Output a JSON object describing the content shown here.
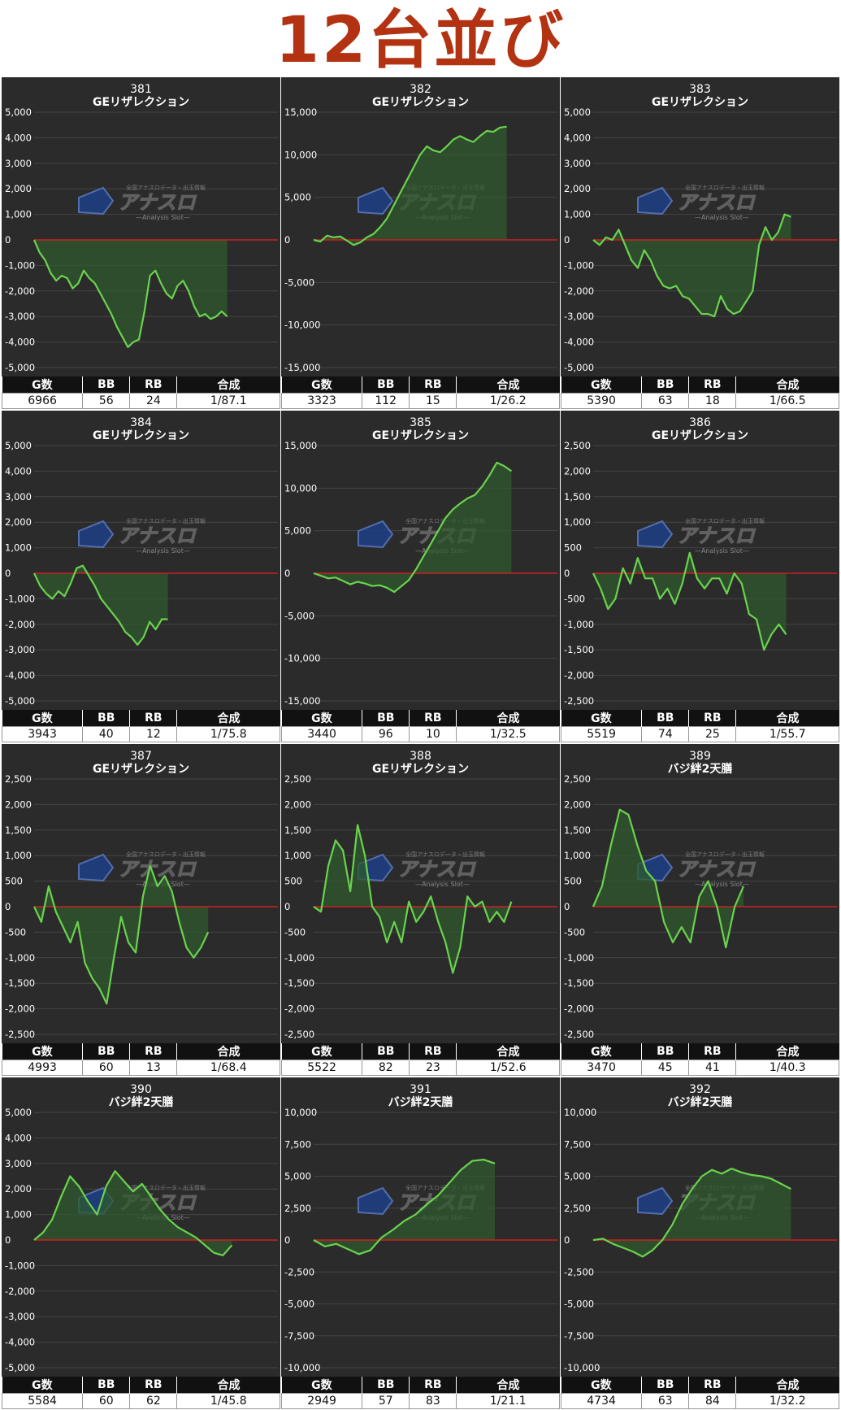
{
  "title": "12台並び",
  "stats_headers": [
    "G数",
    "BB",
    "RB",
    "合成"
  ],
  "logo": {
    "text": "アナスロ",
    "subtext": "—Analysis Slot—",
    "tagline": "全国アナスロデータ・出玉情報",
    "color": "#2d4a8a"
  },
  "colors": {
    "line": "#6ad34e",
    "fill": "#2f5a2e",
    "zero": "#cc2020",
    "grid": "#444444",
    "bg": "#2b2b2b"
  },
  "machines": [
    {
      "number": "381",
      "name": "GEリザレクション",
      "games": "6966",
      "bb": "56",
      "rb": "24",
      "ratio": "1/87.1"
    },
    {
      "number": "382",
      "name": "GEリザレクション",
      "games": "3323",
      "bb": "112",
      "rb": "15",
      "ratio": "1/26.2"
    },
    {
      "number": "383",
      "name": "GEリザレクション",
      "games": "5390",
      "bb": "63",
      "rb": "18",
      "ratio": "1/66.5"
    },
    {
      "number": "384",
      "name": "GEリザレクション",
      "games": "3943",
      "bb": "40",
      "rb": "12",
      "ratio": "1/75.8"
    },
    {
      "number": "385",
      "name": "GEリザレクション",
      "games": "3440",
      "bb": "96",
      "rb": "10",
      "ratio": "1/32.5"
    },
    {
      "number": "386",
      "name": "GEリザレクション",
      "games": "5519",
      "bb": "74",
      "rb": "25",
      "ratio": "1/55.7"
    },
    {
      "number": "387",
      "name": "GEリザレクション",
      "games": "4993",
      "bb": "60",
      "rb": "13",
      "ratio": "1/68.4"
    },
    {
      "number": "388",
      "name": "GEリザレクション",
      "games": "5522",
      "bb": "82",
      "rb": "23",
      "ratio": "1/52.6"
    },
    {
      "number": "389",
      "name": "バジ絆2天膳",
      "games": "3470",
      "bb": "45",
      "rb": "41",
      "ratio": "1/40.3"
    },
    {
      "number": "390",
      "name": "バジ絆2天膳",
      "games": "5584",
      "bb": "60",
      "rb": "62",
      "ratio": "1/45.8"
    },
    {
      "number": "391",
      "name": "バジ絆2天膳",
      "games": "2949",
      "bb": "57",
      "rb": "83",
      "ratio": "1/21.1"
    },
    {
      "number": "392",
      "name": "バジ絆2天膳",
      "games": "4734",
      "bb": "63",
      "rb": "84",
      "ratio": "1/32.2"
    }
  ],
  "chart_data": [
    {
      "type": "area",
      "title": "381",
      "subtitle": "GEリザレクション",
      "ylim": [
        -5000,
        5000
      ],
      "yticks": [
        "5,000",
        "4,000",
        "3,000",
        "2,000",
        "1,000",
        "0",
        "-1,000",
        "-2,000",
        "-3,000",
        "-4,000",
        "-5,000"
      ],
      "x_end": 0.8,
      "values": [
        0,
        -500,
        -800,
        -1300,
        -1600,
        -1400,
        -1500,
        -1900,
        -1700,
        -1200,
        -1500,
        -1700,
        -2100,
        -2500,
        -2900,
        -3400,
        -3800,
        -4200,
        -4000,
        -3900,
        -2800,
        -1400,
        -1200,
        -1700,
        -2100,
        -2300,
        -1800,
        -1600,
        -2000,
        -2600,
        -3000,
        -2900,
        -3100,
        -3000,
        -2800,
        -3000
      ]
    },
    {
      "type": "area",
      "title": "382",
      "subtitle": "GEリザレクション",
      "ylim": [
        -15000,
        15000
      ],
      "yticks": [
        "15,000",
        "10,000",
        "5,000",
        "0",
        "-5,000",
        "-10,000",
        "-15,000"
      ],
      "x_end": 0.8,
      "values": [
        0,
        -200,
        500,
        300,
        400,
        -100,
        -600,
        -300,
        300,
        700,
        1500,
        2500,
        4000,
        5500,
        7000,
        8500,
        10000,
        11000,
        10500,
        10300,
        11000,
        11800,
        12200,
        11800,
        11500,
        12200,
        12800,
        12700,
        13200,
        13300
      ]
    },
    {
      "type": "area",
      "title": "383",
      "subtitle": "GEリザレクション",
      "ylim": [
        -5000,
        5000
      ],
      "yticks": [
        "5,000",
        "4,000",
        "3,000",
        "2,000",
        "1,000",
        "0",
        "-1,000",
        "-2,000",
        "-3,000",
        "-4,000",
        "-5,000"
      ],
      "x_end": 0.82,
      "values": [
        0,
        -200,
        100,
        0,
        400,
        -200,
        -800,
        -1100,
        -400,
        -800,
        -1400,
        -1800,
        -1900,
        -1800,
        -2200,
        -2300,
        -2600,
        -2900,
        -2900,
        -3000,
        -2200,
        -2700,
        -2900,
        -2800,
        -2400,
        -2000,
        -200,
        500,
        0,
        300,
        1000,
        900
      ]
    },
    {
      "type": "area",
      "title": "384",
      "subtitle": "GEリザレクション",
      "ylim": [
        -5000,
        5000
      ],
      "yticks": [
        "5,000",
        "4,000",
        "3,000",
        "2,000",
        "1,000",
        "0",
        "-1,000",
        "-2,000",
        "-3,000",
        "-4,000",
        "-5,000"
      ],
      "x_end": 0.55,
      "values": [
        0,
        -500,
        -800,
        -1000,
        -700,
        -900,
        -400,
        200,
        300,
        -100,
        -500,
        -1000,
        -1300,
        -1600,
        -1900,
        -2300,
        -2500,
        -2800,
        -2500,
        -1900,
        -2200,
        -1800,
        -1800
      ]
    },
    {
      "type": "area",
      "title": "385",
      "subtitle": "GEリザレクション",
      "ylim": [
        -15000,
        15000
      ],
      "yticks": [
        "15,000",
        "10,000",
        "5,000",
        "0",
        "-5,000",
        "-10,000",
        "-15,000"
      ],
      "x_end": 0.82,
      "values": [
        0,
        -300,
        -600,
        -500,
        -900,
        -1300,
        -1000,
        -1200,
        -1500,
        -1400,
        -1700,
        -2200,
        -1500,
        -800,
        500,
        2000,
        3500,
        5000,
        6500,
        7500,
        8200,
        8800,
        9200,
        10200,
        11500,
        13000,
        12600,
        12000
      ]
    },
    {
      "type": "area",
      "title": "386",
      "subtitle": "GEリザレクション",
      "ylim": [
        -2500,
        2500
      ],
      "yticks": [
        "2,500",
        "2,000",
        "1,500",
        "1,000",
        "500",
        "0",
        "-500",
        "-1,000",
        "-1,500",
        "-2,000",
        "-2,500"
      ],
      "x_end": 0.8,
      "values": [
        0,
        -300,
        -700,
        -500,
        100,
        -200,
        300,
        -100,
        -100,
        -500,
        -300,
        -600,
        -200,
        400,
        -100,
        -300,
        -100,
        -100,
        -400,
        0,
        -200,
        -800,
        -900,
        -1500,
        -1200,
        -1000,
        -1200
      ]
    },
    {
      "type": "area",
      "title": "387",
      "subtitle": "GEリザレクション",
      "ylim": [
        -2500,
        2500
      ],
      "yticks": [
        "2,500",
        "2,000",
        "1,500",
        "1,000",
        "500",
        "0",
        "-500",
        "-1,000",
        "-1,500",
        "-2,000",
        "-2,500"
      ],
      "x_end": 0.72,
      "values": [
        0,
        -300,
        400,
        -100,
        -400,
        -700,
        -300,
        -1100,
        -1400,
        -1600,
        -1900,
        -1000,
        -200,
        -700,
        -900,
        200,
        800,
        400,
        600,
        300,
        -300,
        -800,
        -1000,
        -800,
        -500
      ]
    },
    {
      "type": "area",
      "title": "388",
      "subtitle": "GEリザレクション",
      "ylim": [
        -2500,
        2500
      ],
      "yticks": [
        "2,500",
        "2,000",
        "1,500",
        "1,000",
        "500",
        "0",
        "-500",
        "-1,000",
        "-1,500",
        "-2,000",
        "-2,500"
      ],
      "x_end": 0.82,
      "values": [
        0,
        -100,
        800,
        1300,
        1100,
        300,
        1600,
        1000,
        0,
        -200,
        -700,
        -300,
        -700,
        100,
        -300,
        -100,
        200,
        -300,
        -700,
        -1300,
        -800,
        200,
        0,
        100,
        -300,
        -100,
        -300,
        100
      ]
    },
    {
      "type": "area",
      "title": "389",
      "subtitle": "バジ絆2天膳",
      "ylim": [
        -2500,
        2500
      ],
      "yticks": [
        "2,500",
        "2,000",
        "1,500",
        "1,000",
        "500",
        "0",
        "-500",
        "-1,000",
        "-1,500",
        "-2,000",
        "-2,500"
      ],
      "x_end": 0.62,
      "values": [
        0,
        400,
        1200,
        1900,
        1800,
        1200,
        700,
        500,
        -300,
        -700,
        -400,
        -700,
        200,
        500,
        0,
        -800,
        0,
        400
      ]
    },
    {
      "type": "area",
      "title": "390",
      "subtitle": "バジ絆2天膳",
      "ylim": [
        -5000,
        5000
      ],
      "yticks": [
        "5,000",
        "4,000",
        "3,000",
        "2,000",
        "1,000",
        "0",
        "-1,000",
        "-2,000",
        "-3,000",
        "-4,000",
        "-5,000"
      ],
      "x_end": 0.82,
      "values": [
        0,
        300,
        800,
        1700,
        2500,
        2100,
        1500,
        1000,
        2100,
        2700,
        2300,
        1900,
        2200,
        1700,
        1200,
        800,
        500,
        300,
        100,
        -200,
        -500,
        -600,
        -200
      ]
    },
    {
      "type": "area",
      "title": "391",
      "subtitle": "バジ絆2天膳",
      "ylim": [
        -10000,
        10000
      ],
      "yticks": [
        "10,000",
        "7,500",
        "5,000",
        "2,500",
        "0",
        "-2,500",
        "-5,000",
        "-7,500",
        "-10,000"
      ],
      "x_end": 0.75,
      "values": [
        0,
        -500,
        -300,
        -700,
        -1100,
        -800,
        200,
        800,
        1500,
        2000,
        2800,
        3500,
        4500,
        5500,
        6200,
        6300,
        6000
      ]
    },
    {
      "type": "area",
      "title": "392",
      "subtitle": "バジ絆2天膳",
      "ylim": [
        -10000,
        10000
      ],
      "yticks": [
        "10,000",
        "7,500",
        "5,000",
        "2,500",
        "0",
        "-2,500",
        "-5,000",
        "-7,500",
        "-10,000"
      ],
      "x_end": 0.82,
      "values": [
        0,
        100,
        -300,
        -600,
        -900,
        -1300,
        -800,
        0,
        1200,
        2800,
        4000,
        5000,
        5500,
        5200,
        5600,
        5300,
        5100,
        5000,
        4800,
        4400,
        4000
      ]
    }
  ]
}
